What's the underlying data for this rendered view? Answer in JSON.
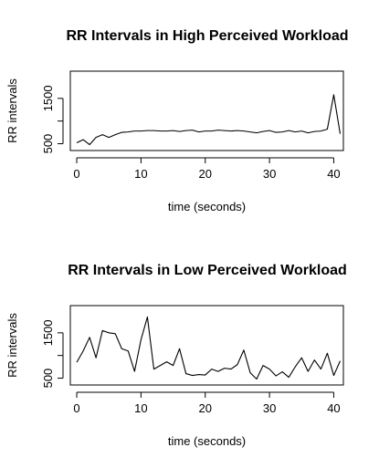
{
  "chart_data": [
    {
      "type": "line",
      "title": "RR Intervals in High Perceived Workload",
      "xlabel": "time (seconds)",
      "ylabel": "RR intervals",
      "xlim": [
        -1,
        41.5
      ],
      "ylim": [
        350,
        2100
      ],
      "xticks": [
        0,
        10,
        20,
        30,
        40
      ],
      "yticks": [
        500,
        1000,
        1500
      ],
      "yticklabels": [
        "500",
        "",
        "1500"
      ],
      "grid": false,
      "x": [
        0,
        1,
        2,
        3,
        4,
        5,
        6,
        7,
        8,
        9,
        10,
        11,
        12,
        13,
        14,
        15,
        16,
        17,
        18,
        19,
        20,
        21,
        22,
        23,
        24,
        25,
        26,
        27,
        28,
        29,
        30,
        31,
        32,
        33,
        34,
        35,
        36,
        37,
        38,
        39,
        40,
        41
      ],
      "values": [
        520,
        590,
        480,
        640,
        700,
        640,
        700,
        750,
        760,
        780,
        780,
        790,
        790,
        780,
        780,
        790,
        770,
        790,
        800,
        760,
        780,
        780,
        800,
        790,
        780,
        790,
        780,
        760,
        740,
        770,
        790,
        750,
        760,
        790,
        760,
        780,
        740,
        770,
        780,
        820,
        1580,
        720
      ]
    },
    {
      "type": "line",
      "title": "RR Intervals in Low Perceived Workload",
      "xlabel": "time (seconds)",
      "ylabel": "RR intervals",
      "xlim": [
        -1,
        41.5
      ],
      "ylim": [
        350,
        2100
      ],
      "xticks": [
        0,
        10,
        20,
        30,
        40
      ],
      "yticks": [
        500,
        1000,
        1500
      ],
      "yticklabels": [
        "500",
        "",
        "1500"
      ],
      "grid": false,
      "x": [
        0,
        1,
        2,
        3,
        4,
        5,
        6,
        7,
        8,
        9,
        10,
        11,
        12,
        13,
        14,
        15,
        16,
        17,
        18,
        19,
        20,
        21,
        22,
        23,
        24,
        25,
        26,
        27,
        28,
        29,
        30,
        31,
        32,
        33,
        34,
        35,
        36,
        37,
        38,
        39,
        40,
        41
      ],
      "values": [
        850,
        1100,
        1400,
        950,
        1550,
        1500,
        1480,
        1150,
        1100,
        650,
        1350,
        1850,
        700,
        780,
        860,
        780,
        1150,
        600,
        560,
        580,
        570,
        700,
        650,
        720,
        700,
        800,
        1120,
        620,
        480,
        780,
        700,
        550,
        640,
        520,
        750,
        950,
        650,
        900,
        700,
        1050,
        560,
        880
      ]
    }
  ]
}
